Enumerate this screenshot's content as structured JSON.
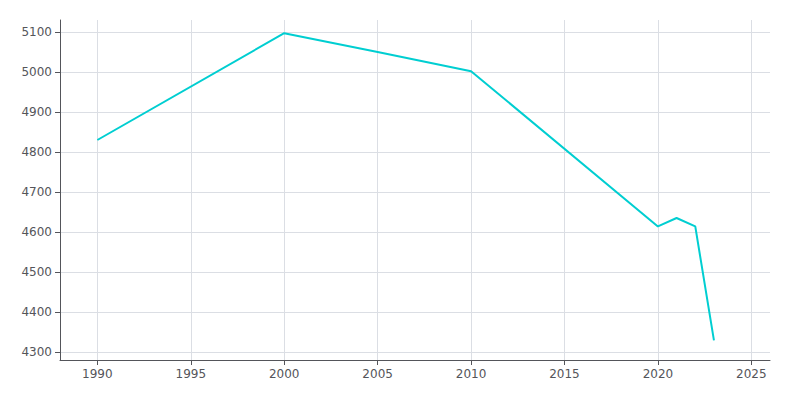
{
  "chart_data": {
    "type": "line",
    "x": [
      1990,
      2000,
      2005,
      2010,
      2020,
      2021,
      2022,
      2023
    ],
    "values": [
      4830,
      5097,
      5050,
      5002,
      4614,
      4635,
      4614,
      4329
    ],
    "color": "#00CED1",
    "xlim": [
      1988,
      2026
    ],
    "ylim": [
      4280,
      5130
    ],
    "xticks": [
      1990,
      1995,
      2000,
      2005,
      2010,
      2015,
      2020,
      2025
    ],
    "yticks": [
      4300,
      4400,
      4500,
      4600,
      4700,
      4800,
      4900,
      5000,
      5100
    ],
    "grid": true
  }
}
